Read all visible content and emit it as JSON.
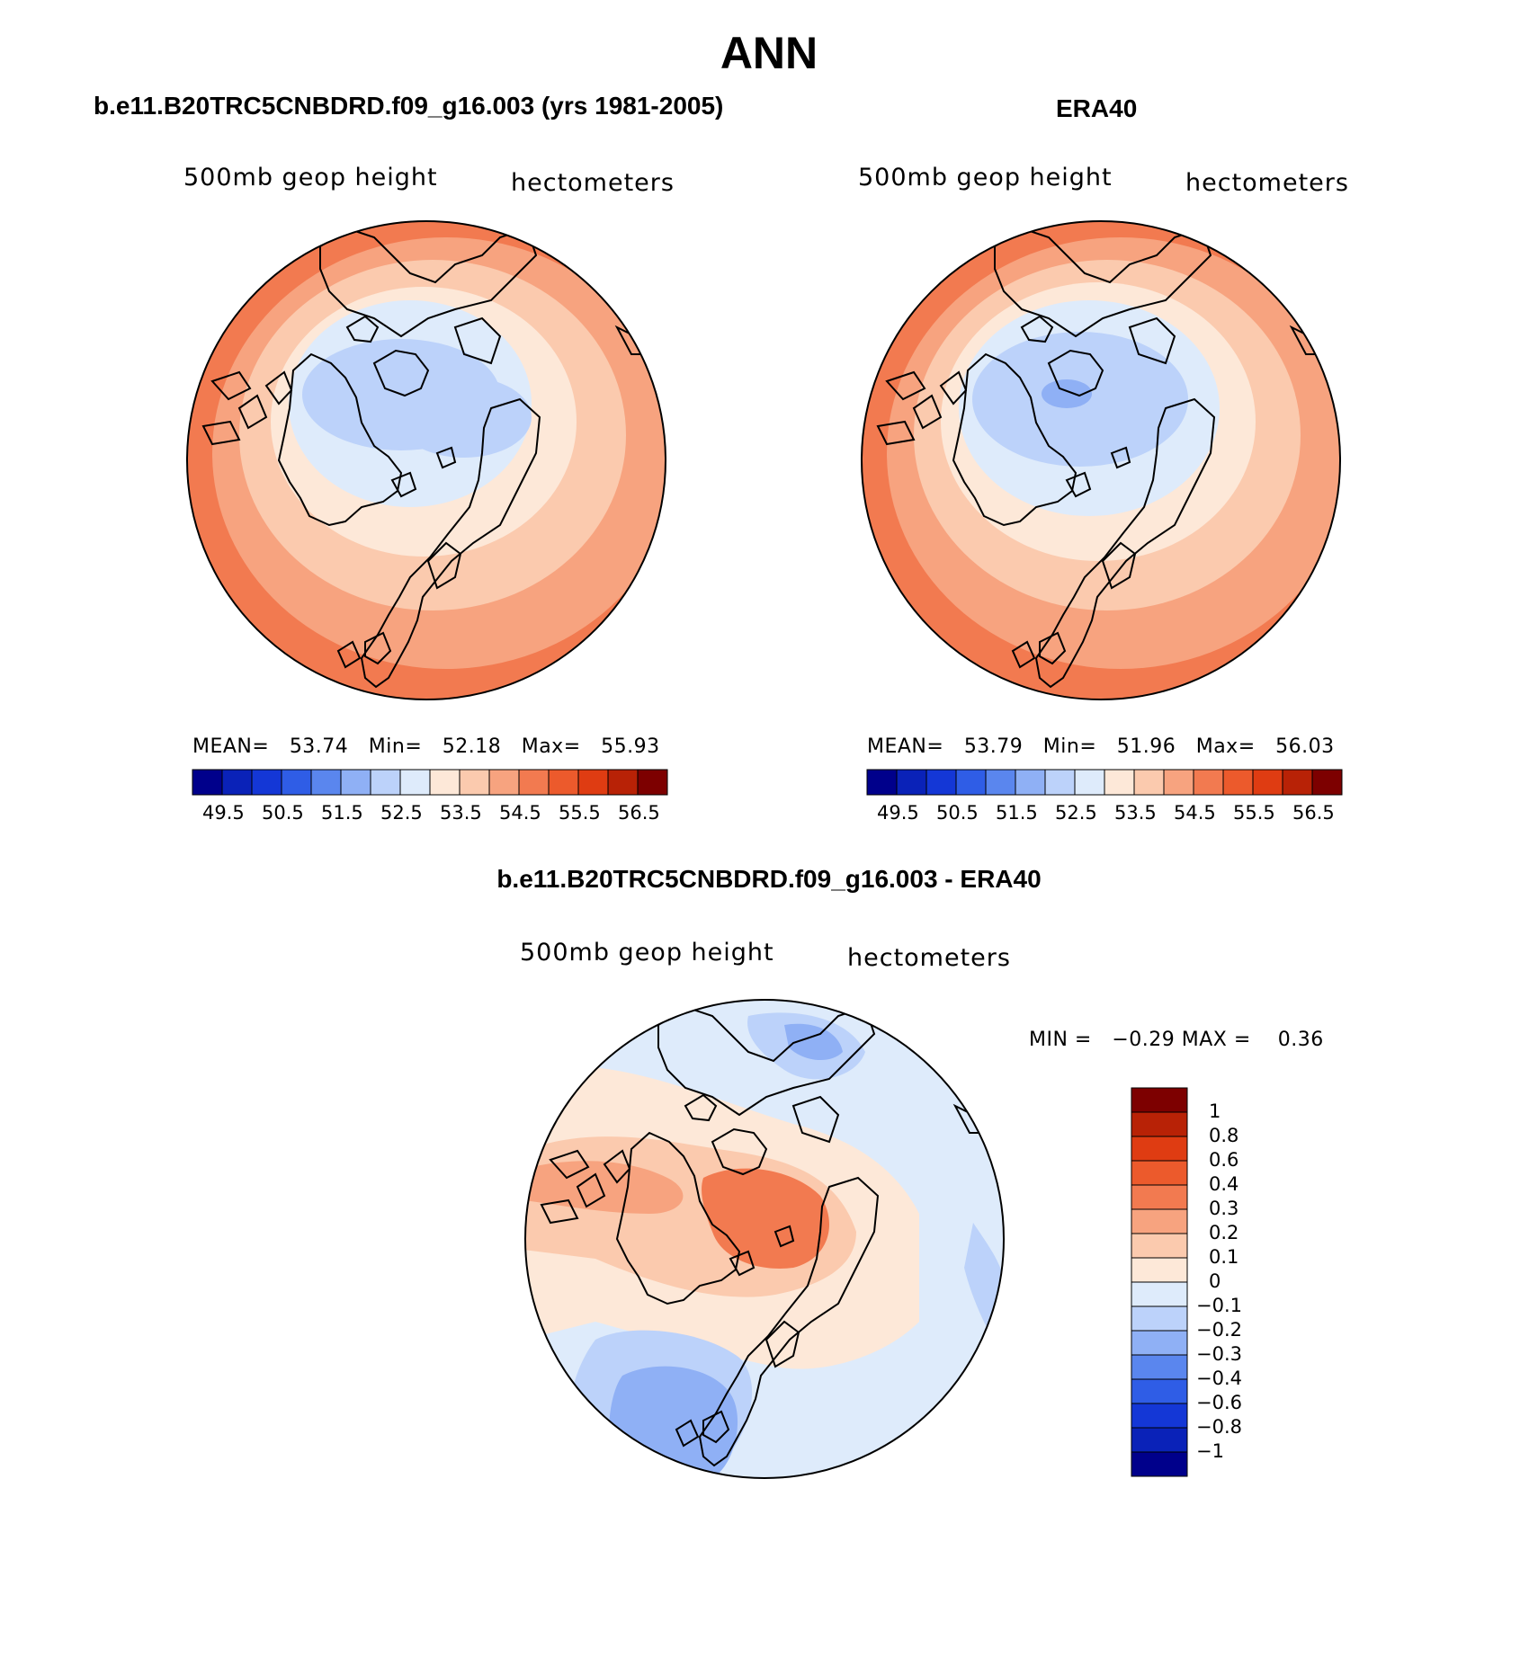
{
  "figure": {
    "title": "ANN",
    "panels": [
      {
        "id": "model",
        "title": "b.e11.B20TRC5CNBDRD.f09_g16.003 (yrs 1981-2005)",
        "variable": "500mb geop height",
        "units": "hectometers",
        "stats": {
          "mean_label": "MEAN=",
          "mean": "53.74",
          "min_label": "Min=",
          "min": "52.18",
          "max_label": "Max=",
          "max": "55.93"
        },
        "colorbar_ticks": [
          "49.5",
          "50.5",
          "51.5",
          "52.5",
          "53.5",
          "54.5",
          "55.5",
          "56.5"
        ]
      },
      {
        "id": "obs",
        "title": "ERA40",
        "variable": "500mb geop height",
        "units": "hectometers",
        "stats": {
          "mean_label": "MEAN=",
          "mean": "53.79",
          "min_label": "Min=",
          "min": "51.96",
          "max_label": "Max=",
          "max": "56.03"
        },
        "colorbar_ticks": [
          "49.5",
          "50.5",
          "51.5",
          "52.5",
          "53.5",
          "54.5",
          "55.5",
          "56.5"
        ]
      },
      {
        "id": "diff",
        "title": "b.e11.B20TRC5CNBDRD.f09_g16.003 - ERA40",
        "variable": "500mb geop height",
        "units": "hectometers",
        "stats": {
          "min_label": "MIN =",
          "min": "−0.29",
          "max_label": "MAX =",
          "max": "0.36"
        },
        "colorbar_ticks": [
          "1",
          "0.8",
          "0.6",
          "0.4",
          "0.3",
          "0.2",
          "0.1",
          "0",
          "−0.1",
          "−0.2",
          "−0.3",
          "−0.4",
          "−0.6",
          "−0.8",
          "−1"
        ]
      }
    ],
    "palette_abs": [
      "#00008b",
      "#0a22b8",
      "#1437d6",
      "#2f5de6",
      "#5a86ee",
      "#8fb0f5",
      "#bcd2fa",
      "#deebfb",
      "#fde8d8",
      "#fbcaae",
      "#f7a37f",
      "#f27a50",
      "#ec5a2c",
      "#df3c12",
      "#b82206",
      "#7d0000"
    ],
    "palette_diff": [
      "#00008b",
      "#0a22b8",
      "#1437d6",
      "#2f5de6",
      "#5a86ee",
      "#8fb0f5",
      "#bcd2fa",
      "#deebfb",
      "#fde8d8",
      "#fbcaae",
      "#f7a37f",
      "#f27a50",
      "#ec5a2c",
      "#df3c12",
      "#b82206",
      "#7d0000"
    ]
  }
}
